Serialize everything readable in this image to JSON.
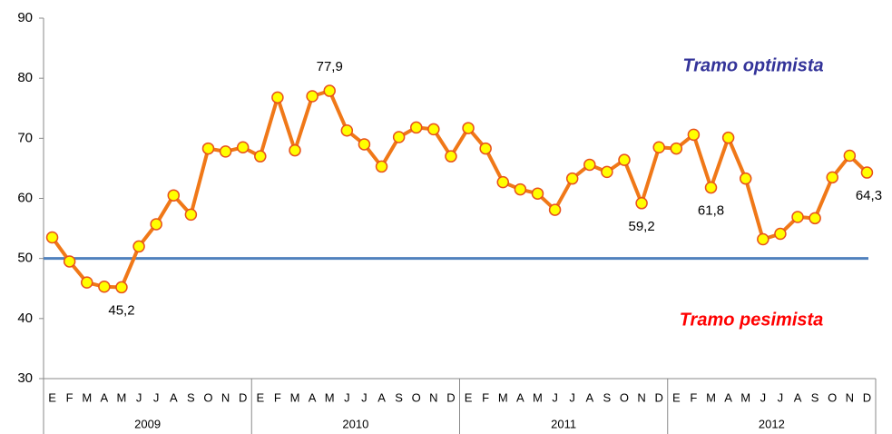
{
  "chart_data": {
    "type": "line",
    "categories": [
      "E",
      "F",
      "M",
      "A",
      "M",
      "J",
      "J",
      "A",
      "S",
      "O",
      "N",
      "D",
      "E",
      "F",
      "M",
      "A",
      "M",
      "J",
      "J",
      "A",
      "S",
      "O",
      "N",
      "D",
      "E",
      "F",
      "M",
      "A",
      "M",
      "J",
      "J",
      "A",
      "S",
      "O",
      "N",
      "D",
      "E",
      "F",
      "M",
      "A",
      "M",
      "J",
      "J",
      "A",
      "S",
      "O",
      "N",
      "D"
    ],
    "years": [
      "2009",
      "2010",
      "2011",
      "2012"
    ],
    "series": [
      {
        "color": "#f07818",
        "marker_color": "#ffff00",
        "values": [
          53.5,
          49.5,
          46,
          45.3,
          45.2,
          52,
          55.7,
          60.5,
          57.3,
          68.3,
          67.8,
          68.5,
          67,
          76.8,
          68,
          77,
          77.9,
          71.3,
          69,
          65.3,
          70.2,
          71.8,
          71.5,
          67,
          71.7,
          68.3,
          62.7,
          61.5,
          60.8,
          58.1,
          63.3,
          65.6,
          64.4,
          66.4,
          59.2,
          68.5,
          68.3,
          70.6,
          61.8,
          70.1,
          63.3,
          53.2,
          54.1,
          56.9,
          56.7,
          63.5,
          67.1,
          64.3
        ],
        "value_labels": [
          null,
          null,
          null,
          null,
          "45,2",
          null,
          null,
          null,
          null,
          null,
          null,
          null,
          null,
          null,
          null,
          null,
          "77,9",
          null,
          null,
          null,
          null,
          null,
          null,
          null,
          null,
          null,
          null,
          null,
          null,
          null,
          null,
          null,
          null,
          null,
          "59,2",
          null,
          null,
          null,
          "61,8",
          null,
          null,
          null,
          null,
          null,
          null,
          null,
          null,
          "64,3"
        ]
      }
    ],
    "reference_line": {
      "value": 50,
      "color": "#4f81bd"
    },
    "annotations": [
      {
        "text": "Tramo optimista",
        "color": "#333399"
      },
      {
        "text": "Tramo pesimista",
        "color": "#ff0000"
      }
    ],
    "ylim": [
      30,
      90
    ],
    "yticks": [
      30,
      40,
      50,
      60,
      70,
      80,
      90
    ]
  }
}
